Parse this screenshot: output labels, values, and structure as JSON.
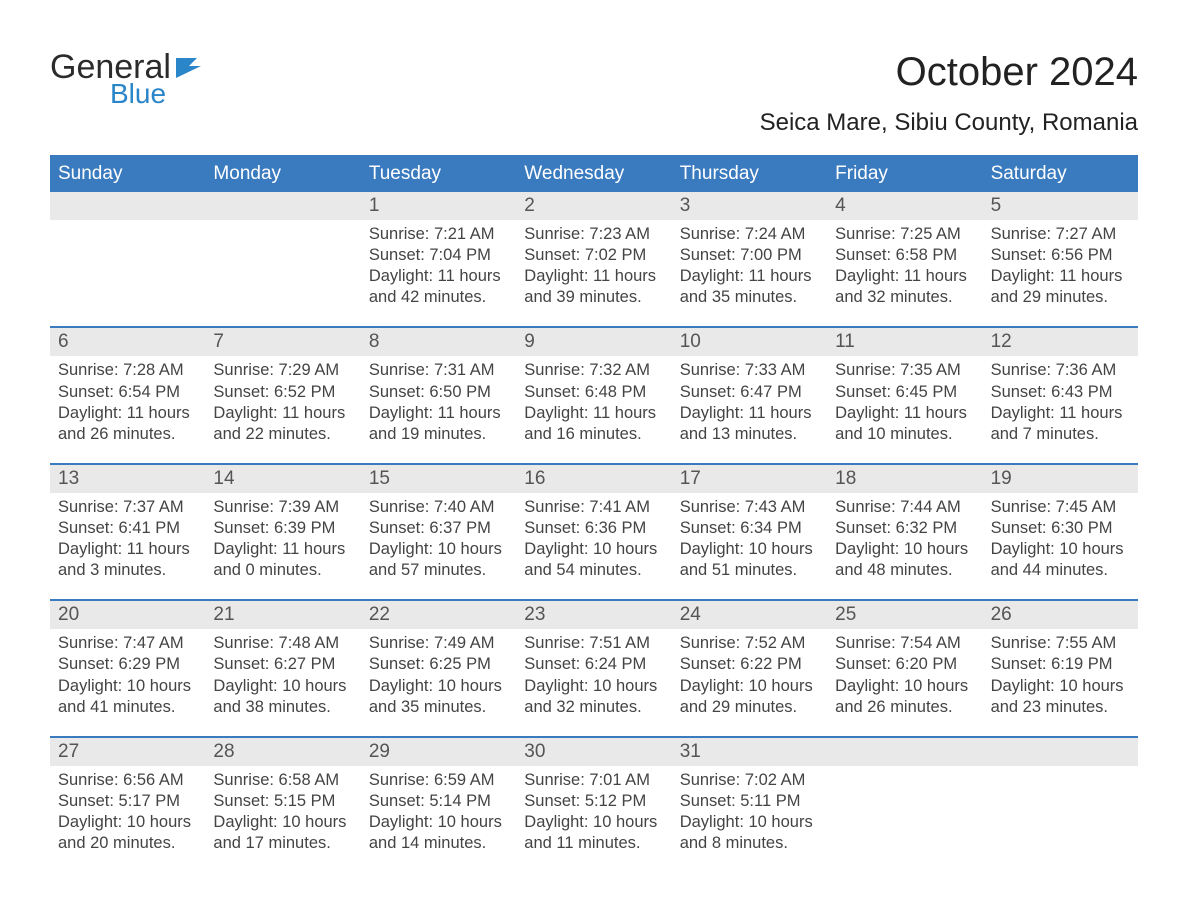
{
  "brand": {
    "word1": "General",
    "word2": "Blue",
    "flag_color": "#2a85c9"
  },
  "title": "October 2024",
  "subtitle": "Seica Mare, Sibiu County, Romania",
  "colors": {
    "header_bg": "#3a7bbf",
    "accent_line": "#3a7bbf",
    "date_strip_bg": "#e9e9e9",
    "page_bg": "#ffffff",
    "text": "#333333"
  },
  "typography": {
    "title_fontsize_pt": 30,
    "subtitle_fontsize_pt": 18,
    "header_fontsize_pt": 14,
    "daynum_fontsize_pt": 14,
    "body_fontsize_pt": 12,
    "font_family": "Arial"
  },
  "day_labels": [
    "Sunday",
    "Monday",
    "Tuesday",
    "Wednesday",
    "Thursday",
    "Friday",
    "Saturday"
  ],
  "weeks": [
    [
      {
        "day": "",
        "blank": true
      },
      {
        "day": "",
        "blank": true
      },
      {
        "day": "1",
        "sunrise": "Sunrise: 7:21 AM",
        "sunset": "Sunset: 7:04 PM",
        "daylight": "Daylight: 11 hours and 42 minutes."
      },
      {
        "day": "2",
        "sunrise": "Sunrise: 7:23 AM",
        "sunset": "Sunset: 7:02 PM",
        "daylight": "Daylight: 11 hours and 39 minutes."
      },
      {
        "day": "3",
        "sunrise": "Sunrise: 7:24 AM",
        "sunset": "Sunset: 7:00 PM",
        "daylight": "Daylight: 11 hours and 35 minutes."
      },
      {
        "day": "4",
        "sunrise": "Sunrise: 7:25 AM",
        "sunset": "Sunset: 6:58 PM",
        "daylight": "Daylight: 11 hours and 32 minutes."
      },
      {
        "day": "5",
        "sunrise": "Sunrise: 7:27 AM",
        "sunset": "Sunset: 6:56 PM",
        "daylight": "Daylight: 11 hours and 29 minutes."
      }
    ],
    [
      {
        "day": "6",
        "sunrise": "Sunrise: 7:28 AM",
        "sunset": "Sunset: 6:54 PM",
        "daylight": "Daylight: 11 hours and 26 minutes."
      },
      {
        "day": "7",
        "sunrise": "Sunrise: 7:29 AM",
        "sunset": "Sunset: 6:52 PM",
        "daylight": "Daylight: 11 hours and 22 minutes."
      },
      {
        "day": "8",
        "sunrise": "Sunrise: 7:31 AM",
        "sunset": "Sunset: 6:50 PM",
        "daylight": "Daylight: 11 hours and 19 minutes."
      },
      {
        "day": "9",
        "sunrise": "Sunrise: 7:32 AM",
        "sunset": "Sunset: 6:48 PM",
        "daylight": "Daylight: 11 hours and 16 minutes."
      },
      {
        "day": "10",
        "sunrise": "Sunrise: 7:33 AM",
        "sunset": "Sunset: 6:47 PM",
        "daylight": "Daylight: 11 hours and 13 minutes."
      },
      {
        "day": "11",
        "sunrise": "Sunrise: 7:35 AM",
        "sunset": "Sunset: 6:45 PM",
        "daylight": "Daylight: 11 hours and 10 minutes."
      },
      {
        "day": "12",
        "sunrise": "Sunrise: 7:36 AM",
        "sunset": "Sunset: 6:43 PM",
        "daylight": "Daylight: 11 hours and 7 minutes."
      }
    ],
    [
      {
        "day": "13",
        "sunrise": "Sunrise: 7:37 AM",
        "sunset": "Sunset: 6:41 PM",
        "daylight": "Daylight: 11 hours and 3 minutes."
      },
      {
        "day": "14",
        "sunrise": "Sunrise: 7:39 AM",
        "sunset": "Sunset: 6:39 PM",
        "daylight": "Daylight: 11 hours and 0 minutes."
      },
      {
        "day": "15",
        "sunrise": "Sunrise: 7:40 AM",
        "sunset": "Sunset: 6:37 PM",
        "daylight": "Daylight: 10 hours and 57 minutes."
      },
      {
        "day": "16",
        "sunrise": "Sunrise: 7:41 AM",
        "sunset": "Sunset: 6:36 PM",
        "daylight": "Daylight: 10 hours and 54 minutes."
      },
      {
        "day": "17",
        "sunrise": "Sunrise: 7:43 AM",
        "sunset": "Sunset: 6:34 PM",
        "daylight": "Daylight: 10 hours and 51 minutes."
      },
      {
        "day": "18",
        "sunrise": "Sunrise: 7:44 AM",
        "sunset": "Sunset: 6:32 PM",
        "daylight": "Daylight: 10 hours and 48 minutes."
      },
      {
        "day": "19",
        "sunrise": "Sunrise: 7:45 AM",
        "sunset": "Sunset: 6:30 PM",
        "daylight": "Daylight: 10 hours and 44 minutes."
      }
    ],
    [
      {
        "day": "20",
        "sunrise": "Sunrise: 7:47 AM",
        "sunset": "Sunset: 6:29 PM",
        "daylight": "Daylight: 10 hours and 41 minutes."
      },
      {
        "day": "21",
        "sunrise": "Sunrise: 7:48 AM",
        "sunset": "Sunset: 6:27 PM",
        "daylight": "Daylight: 10 hours and 38 minutes."
      },
      {
        "day": "22",
        "sunrise": "Sunrise: 7:49 AM",
        "sunset": "Sunset: 6:25 PM",
        "daylight": "Daylight: 10 hours and 35 minutes."
      },
      {
        "day": "23",
        "sunrise": "Sunrise: 7:51 AM",
        "sunset": "Sunset: 6:24 PM",
        "daylight": "Daylight: 10 hours and 32 minutes."
      },
      {
        "day": "24",
        "sunrise": "Sunrise: 7:52 AM",
        "sunset": "Sunset: 6:22 PM",
        "daylight": "Daylight: 10 hours and 29 minutes."
      },
      {
        "day": "25",
        "sunrise": "Sunrise: 7:54 AM",
        "sunset": "Sunset: 6:20 PM",
        "daylight": "Daylight: 10 hours and 26 minutes."
      },
      {
        "day": "26",
        "sunrise": "Sunrise: 7:55 AM",
        "sunset": "Sunset: 6:19 PM",
        "daylight": "Daylight: 10 hours and 23 minutes."
      }
    ],
    [
      {
        "day": "27",
        "sunrise": "Sunrise: 6:56 AM",
        "sunset": "Sunset: 5:17 PM",
        "daylight": "Daylight: 10 hours and 20 minutes."
      },
      {
        "day": "28",
        "sunrise": "Sunrise: 6:58 AM",
        "sunset": "Sunset: 5:15 PM",
        "daylight": "Daylight: 10 hours and 17 minutes."
      },
      {
        "day": "29",
        "sunrise": "Sunrise: 6:59 AM",
        "sunset": "Sunset: 5:14 PM",
        "daylight": "Daylight: 10 hours and 14 minutes."
      },
      {
        "day": "30",
        "sunrise": "Sunrise: 7:01 AM",
        "sunset": "Sunset: 5:12 PM",
        "daylight": "Daylight: 10 hours and 11 minutes."
      },
      {
        "day": "31",
        "sunrise": "Sunrise: 7:02 AM",
        "sunset": "Sunset: 5:11 PM",
        "daylight": "Daylight: 10 hours and 8 minutes."
      },
      {
        "day": "",
        "blank": true
      },
      {
        "day": "",
        "blank": true
      }
    ]
  ]
}
